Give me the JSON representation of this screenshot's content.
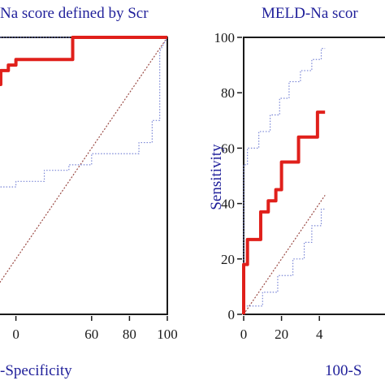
{
  "chart_data": [
    {
      "type": "line",
      "title": "Na score defined by Scr",
      "xlabel": "-Specificity",
      "ylabel": "",
      "xlim": [
        0,
        100
      ],
      "ylim": [
        0,
        100
      ],
      "xticks": [
        "0",
        "60",
        "80",
        "100"
      ],
      "yticks": [],
      "series": [
        {
          "role": "roc",
          "color": "#e0201b",
          "style": "solid",
          "x": [
            -5,
            0,
            0,
            8,
            8,
            12,
            12,
            16,
            16,
            20,
            20,
            50,
            50,
            92,
            92,
            100
          ],
          "y": [
            75,
            75,
            80,
            80,
            83,
            83,
            88,
            88,
            90,
            90,
            92,
            92,
            100,
            100,
            100,
            100
          ]
        },
        {
          "role": "ci-upper",
          "color": "#7a86d6",
          "style": "dotted",
          "x": [
            -5,
            0,
            0,
            100,
            100
          ],
          "y": [
            95,
            95,
            100,
            100,
            100
          ]
        },
        {
          "role": "ci-lower",
          "color": "#7a86d6",
          "style": "dotted",
          "x": [
            -5,
            0,
            0,
            20,
            20,
            35,
            35,
            48,
            48,
            60,
            60,
            85,
            85,
            92,
            92,
            96,
            96,
            100
          ],
          "y": [
            38,
            38,
            46,
            46,
            48,
            48,
            52,
            52,
            54,
            54,
            58,
            58,
            62,
            62,
            70,
            70,
            95,
            100
          ]
        },
        {
          "role": "reference",
          "color": "#9a4a44",
          "style": "dashed",
          "x": [
            -5,
            100
          ],
          "y": [
            -5,
            100
          ]
        }
      ]
    },
    {
      "type": "line",
      "title": "MELD-Na scor",
      "xlabel": "100-S",
      "ylabel": "Sensitivity",
      "xlim": [
        0,
        100
      ],
      "ylim": [
        0,
        100
      ],
      "xticks": [
        "0",
        "20",
        "4"
      ],
      "yticks": [
        "0",
        "20",
        "40",
        "60",
        "80",
        "100"
      ],
      "series": [
        {
          "role": "roc",
          "color": "#e0201b",
          "style": "solid",
          "x": [
            0,
            0,
            2,
            2,
            9,
            9,
            13,
            13,
            17,
            17,
            20,
            20,
            29,
            29,
            39,
            39,
            43
          ],
          "y": [
            0,
            18,
            18,
            27,
            27,
            37,
            37,
            41,
            41,
            45,
            45,
            55,
            55,
            64,
            64,
            73,
            73
          ]
        },
        {
          "role": "ci-upper",
          "color": "#7a86d6",
          "style": "dotted",
          "x": [
            0,
            0,
            2,
            2,
            8,
            8,
            14,
            14,
            19,
            19,
            24,
            24,
            30,
            30,
            36,
            36,
            41,
            41,
            43
          ],
          "y": [
            0,
            54,
            54,
            60,
            60,
            66,
            66,
            72,
            72,
            78,
            78,
            84,
            84,
            88,
            88,
            92,
            92,
            96,
            96
          ]
        },
        {
          "role": "ci-lower",
          "color": "#7a86d6",
          "style": "dotted",
          "x": [
            0,
            0,
            10,
            10,
            18,
            18,
            26,
            26,
            32,
            32,
            36,
            36,
            41,
            41,
            43
          ],
          "y": [
            0,
            3,
            3,
            8,
            8,
            14,
            14,
            20,
            20,
            26,
            26,
            32,
            32,
            38,
            38
          ]
        },
        {
          "role": "reference",
          "color": "#9a4a44",
          "style": "dashed",
          "x": [
            0,
            43
          ],
          "y": [
            0,
            43
          ]
        }
      ]
    }
  ]
}
